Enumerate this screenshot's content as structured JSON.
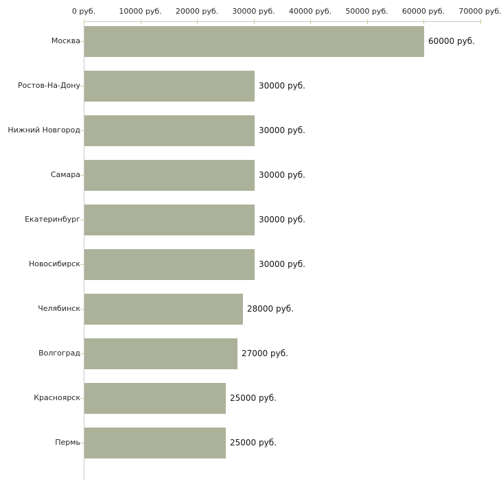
{
  "chart_data": {
    "type": "bar",
    "orientation": "horizontal",
    "title": "",
    "xlabel": "",
    "ylabel": "",
    "unit": "руб.",
    "categories": [
      "Москва",
      "Ростов-На-Дону",
      "Нижний Новгород",
      "Самара",
      "Екатеринбург",
      "Новосибирск",
      "Челябинск",
      "Волгоград",
      "Красноярск",
      "Пермь"
    ],
    "values": [
      60000,
      30000,
      30000,
      30000,
      30000,
      30000,
      28000,
      27000,
      25000,
      25000
    ],
    "value_labels": [
      "60000 руб.",
      "30000 руб.",
      "30000 руб.",
      "30000 руб.",
      "30000 руб.",
      "30000 руб.",
      "28000 руб.",
      "27000 руб.",
      "25000 руб.",
      "25000 руб."
    ],
    "x_tick_values": [
      0,
      10000,
      20000,
      30000,
      40000,
      50000,
      60000,
      70000
    ],
    "x_tick_labels": [
      "0 руб.",
      "10000 руб.",
      "20000 руб.",
      "30000 руб.",
      "40000 руб.",
      "50000 руб.",
      "60000 руб.",
      "70000 руб."
    ],
    "xlim": [
      0,
      70000
    ],
    "grid": false,
    "legend": "none",
    "axis_position": "top",
    "colors": {
      "bar": "#abb299",
      "axis_line": "#c9c9c9",
      "tick_mark": "#cdcc9e",
      "category_text": "#262626",
      "tick_text": "#262626",
      "value_text": "#111111",
      "background": "#ffffff"
    }
  }
}
